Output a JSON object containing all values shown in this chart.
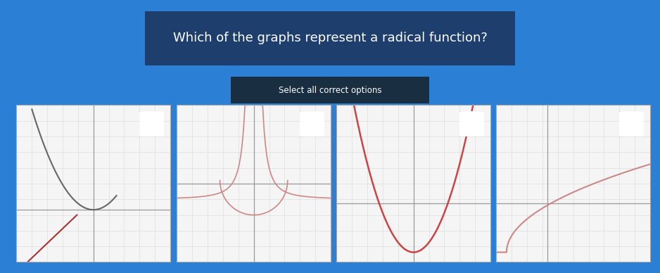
{
  "title": "Which of the graphs represent a radical function?",
  "subtitle": "Select all correct options",
  "bg_color_top": "#1a5fa8",
  "bg_color": "#2b7fd4",
  "panel_bg": "#f5f5f5",
  "grid_color": "#d8d8d8",
  "axis_color": "#999999",
  "graph1_line_color": "#666666",
  "graph1_line2_color": "#aa3333",
  "graph2_color": "#cc8888",
  "graph3_color": "#cc4444",
  "graph4_color": "#cc8888",
  "title_color": "white",
  "title_bg": "#1e3f6e",
  "subtitle_bg": "#1a2e42",
  "subtitle_color": "white",
  "panel_border_color": "#44aacc"
}
